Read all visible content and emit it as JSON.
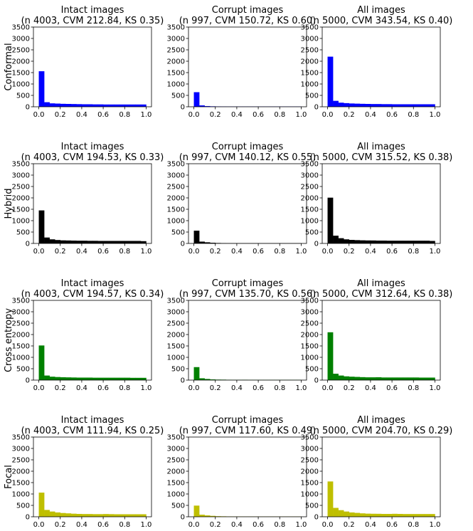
{
  "colors": {
    "Conformal": "#0000ff",
    "Hybrid": "#000000",
    "Cross entropy": "#008000",
    "Focal": "#bfbf00"
  },
  "chart_data": [
    {
      "type": "bar",
      "row": "Conformal",
      "ylabel": "Conformal",
      "title_line1": "Intact images",
      "title_line2": "(n 4003, CVM 212.84, KS 0.35)",
      "xlim": [
        -0.05,
        1.05
      ],
      "ylim": [
        0,
        3500
      ],
      "xticks": [
        "0.0",
        "0.2",
        "0.4",
        "0.6",
        "0.8",
        "1.0"
      ],
      "yticks": [
        "0",
        "500",
        "1000",
        "1500",
        "2000",
        "2500",
        "3000",
        "3500"
      ],
      "bin_width": 0.05,
      "bin_starts": [
        0,
        0.05,
        0.1,
        0.15,
        0.2,
        0.25,
        0.3,
        0.35,
        0.4,
        0.45,
        0.5,
        0.55,
        0.6,
        0.65,
        0.7,
        0.75,
        0.8,
        0.85,
        0.9,
        0.95
      ],
      "values": [
        1560,
        200,
        150,
        140,
        130,
        125,
        120,
        115,
        110,
        110,
        105,
        105,
        100,
        100,
        100,
        100,
        100,
        100,
        100,
        100
      ]
    },
    {
      "type": "bar",
      "row": "Conformal",
      "ylabel": "",
      "title_line1": "Corrupt images",
      "title_line2": "(n 997, CVM 150.72, KS 0.60)",
      "xlim": [
        -0.05,
        1.05
      ],
      "ylim": [
        0,
        3500
      ],
      "xticks": [
        "0.0",
        "0.2",
        "0.4",
        "0.6",
        "0.8",
        "1.0"
      ],
      "yticks": [
        "0",
        "500",
        "1000",
        "1500",
        "2000",
        "2500",
        "3000",
        "3500"
      ],
      "bin_width": 0.05,
      "bin_starts": [
        0,
        0.05,
        0.1,
        0.15,
        0.2,
        0.25,
        0.3,
        0.35,
        0.4,
        0.45,
        0.5,
        0.55,
        0.6,
        0.65,
        0.7,
        0.75,
        0.8,
        0.85,
        0.9,
        0.95
      ],
      "values": [
        640,
        60,
        30,
        20,
        15,
        12,
        10,
        10,
        10,
        10,
        10,
        10,
        10,
        10,
        10,
        10,
        10,
        10,
        10,
        10
      ]
    },
    {
      "type": "bar",
      "row": "Conformal",
      "ylabel": "",
      "title_line1": "All images",
      "title_line2": "(n 5000, CVM 343.54, KS 0.40)",
      "xlim": [
        -0.05,
        1.05
      ],
      "ylim": [
        0,
        3500
      ],
      "xticks": [
        "0.0",
        "0.2",
        "0.4",
        "0.6",
        "0.8",
        "1.0"
      ],
      "yticks": [
        "0",
        "500",
        "1000",
        "1500",
        "2000",
        "2500",
        "3000",
        "3500"
      ],
      "bin_width": 0.05,
      "bin_starts": [
        0,
        0.05,
        0.1,
        0.15,
        0.2,
        0.25,
        0.3,
        0.35,
        0.4,
        0.45,
        0.5,
        0.55,
        0.6,
        0.65,
        0.7,
        0.75,
        0.8,
        0.85,
        0.9,
        0.95
      ],
      "values": [
        2200,
        260,
        180,
        160,
        145,
        137,
        130,
        125,
        120,
        120,
        115,
        115,
        110,
        110,
        110,
        110,
        110,
        110,
        110,
        110
      ]
    },
    {
      "type": "bar",
      "row": "Hybrid",
      "ylabel": "Hybrid",
      "title_line1": "Intact images",
      "title_line2": "(n 4003, CVM 194.53, KS 0.33)",
      "xlim": [
        -0.05,
        1.05
      ],
      "ylim": [
        0,
        3500
      ],
      "xticks": [
        "0.0",
        "0.2",
        "0.4",
        "0.6",
        "0.8",
        "1.0"
      ],
      "yticks": [
        "0",
        "500",
        "1000",
        "1500",
        "2000",
        "2500",
        "3000",
        "3500"
      ],
      "bin_width": 0.05,
      "bin_starts": [
        0,
        0.05,
        0.1,
        0.15,
        0.2,
        0.25,
        0.3,
        0.35,
        0.4,
        0.45,
        0.5,
        0.55,
        0.6,
        0.65,
        0.7,
        0.75,
        0.8,
        0.85,
        0.9,
        0.95
      ],
      "values": [
        1450,
        260,
        180,
        150,
        135,
        130,
        125,
        120,
        120,
        115,
        115,
        110,
        110,
        110,
        110,
        110,
        110,
        110,
        110,
        100
      ]
    },
    {
      "type": "bar",
      "row": "Hybrid",
      "ylabel": "",
      "title_line1": "Corrupt images",
      "title_line2": "(n 997, CVM 140.12, KS 0.55)",
      "xlim": [
        -0.05,
        1.05
      ],
      "ylim": [
        0,
        3500
      ],
      "xticks": [
        "0.0",
        "0.2",
        "0.4",
        "0.6",
        "0.8",
        "1.0"
      ],
      "yticks": [
        "0",
        "500",
        "1000",
        "1500",
        "2000",
        "2500",
        "3000",
        "3500"
      ],
      "bin_width": 0.05,
      "bin_starts": [
        0,
        0.05,
        0.1,
        0.15,
        0.2,
        0.25,
        0.3,
        0.35,
        0.4,
        0.45,
        0.5,
        0.55,
        0.6,
        0.65,
        0.7,
        0.75,
        0.8,
        0.85,
        0.9,
        0.95
      ],
      "values": [
        560,
        80,
        50,
        30,
        20,
        15,
        12,
        12,
        10,
        10,
        10,
        10,
        10,
        10,
        10,
        10,
        10,
        10,
        10,
        10
      ]
    },
    {
      "type": "bar",
      "row": "Hybrid",
      "ylabel": "",
      "title_line1": "All images",
      "title_line2": "(n 5000, CVM 315.52, KS 0.38)",
      "xlim": [
        -0.05,
        1.05
      ],
      "ylim": [
        0,
        3500
      ],
      "xticks": [
        "0.0",
        "0.2",
        "0.4",
        "0.6",
        "0.8",
        "1.0"
      ],
      "yticks": [
        "0",
        "500",
        "1000",
        "1500",
        "2000",
        "2500",
        "3000",
        "3500"
      ],
      "bin_width": 0.05,
      "bin_starts": [
        0,
        0.05,
        0.1,
        0.15,
        0.2,
        0.25,
        0.3,
        0.35,
        0.4,
        0.45,
        0.5,
        0.55,
        0.6,
        0.65,
        0.7,
        0.75,
        0.8,
        0.85,
        0.9,
        0.95
      ],
      "values": [
        2010,
        340,
        230,
        180,
        155,
        145,
        137,
        132,
        130,
        125,
        125,
        120,
        120,
        120,
        120,
        120,
        120,
        120,
        120,
        110
      ]
    },
    {
      "type": "bar",
      "row": "Cross entropy",
      "ylabel": "Cross entropy",
      "title_line1": "Intact images",
      "title_line2": "(n 4003, CVM 194.57, KS 0.34)",
      "xlim": [
        -0.05,
        1.05
      ],
      "ylim": [
        0,
        3500
      ],
      "xticks": [
        "0.0",
        "0.2",
        "0.4",
        "0.6",
        "0.8",
        "1.0"
      ],
      "yticks": [
        "0",
        "500",
        "1000",
        "1500",
        "2000",
        "2500",
        "3000",
        "3500"
      ],
      "bin_width": 0.05,
      "bin_starts": [
        0,
        0.05,
        0.1,
        0.15,
        0.2,
        0.25,
        0.3,
        0.35,
        0.4,
        0.45,
        0.5,
        0.55,
        0.6,
        0.65,
        0.7,
        0.75,
        0.8,
        0.85,
        0.9,
        0.95
      ],
      "values": [
        1520,
        200,
        150,
        135,
        125,
        120,
        115,
        110,
        110,
        110,
        105,
        105,
        105,
        105,
        105,
        105,
        105,
        100,
        100,
        100
      ]
    },
    {
      "type": "bar",
      "row": "Cross entropy",
      "ylabel": "",
      "title_line1": "Corrupt images",
      "title_line2": "(n 997, CVM 135.70, KS 0.56)",
      "xlim": [
        -0.05,
        1.05
      ],
      "ylim": [
        0,
        3500
      ],
      "xticks": [
        "0.0",
        "0.2",
        "0.4",
        "0.6",
        "0.8",
        "1.0"
      ],
      "yticks": [
        "0",
        "500",
        "1000",
        "1500",
        "2000",
        "2500",
        "3000",
        "3500"
      ],
      "bin_width": 0.05,
      "bin_starts": [
        0,
        0.05,
        0.1,
        0.15,
        0.2,
        0.25,
        0.3,
        0.35,
        0.4,
        0.45,
        0.5,
        0.55,
        0.6,
        0.65,
        0.7,
        0.75,
        0.8,
        0.85,
        0.9,
        0.95
      ],
      "values": [
        570,
        80,
        50,
        30,
        22,
        20,
        15,
        12,
        12,
        15,
        10,
        10,
        10,
        10,
        10,
        10,
        10,
        10,
        10,
        10
      ]
    },
    {
      "type": "bar",
      "row": "Cross entropy",
      "ylabel": "",
      "title_line1": "All images",
      "title_line2": "(n 5000, CVM 312.64, KS 0.38)",
      "xlim": [
        -0.05,
        1.05
      ],
      "ylim": [
        0,
        3500
      ],
      "xticks": [
        "0.0",
        "0.2",
        "0.4",
        "0.6",
        "0.8",
        "1.0"
      ],
      "yticks": [
        "0",
        "500",
        "1000",
        "1500",
        "2000",
        "2500",
        "3000",
        "3500"
      ],
      "bin_width": 0.05,
      "bin_starts": [
        0,
        0.05,
        0.1,
        0.15,
        0.2,
        0.25,
        0.3,
        0.35,
        0.4,
        0.45,
        0.5,
        0.55,
        0.6,
        0.65,
        0.7,
        0.75,
        0.8,
        0.85,
        0.9,
        0.95
      ],
      "values": [
        2100,
        280,
        200,
        165,
        150,
        140,
        130,
        122,
        122,
        125,
        115,
        115,
        115,
        115,
        115,
        115,
        115,
        110,
        110,
        110
      ]
    },
    {
      "type": "bar",
      "row": "Focal",
      "ylabel": "Focal",
      "title_line1": "Intact images",
      "title_line2": "(n 4003, CVM 111.94, KS 0.25)",
      "xlim": [
        -0.05,
        1.05
      ],
      "ylim": [
        0,
        3500
      ],
      "xticks": [
        "0.0",
        "0.2",
        "0.4",
        "0.6",
        "0.8",
        "1.0"
      ],
      "yticks": [
        "0",
        "500",
        "1000",
        "1500",
        "2000",
        "2500",
        "3000",
        "3500"
      ],
      "bin_width": 0.05,
      "bin_starts": [
        0,
        0.05,
        0.1,
        0.15,
        0.2,
        0.25,
        0.3,
        0.35,
        0.4,
        0.45,
        0.5,
        0.55,
        0.6,
        0.65,
        0.7,
        0.75,
        0.8,
        0.85,
        0.9,
        0.95
      ],
      "values": [
        1060,
        300,
        230,
        190,
        165,
        150,
        135,
        125,
        120,
        120,
        115,
        115,
        120,
        115,
        110,
        110,
        110,
        110,
        110,
        110
      ]
    },
    {
      "type": "bar",
      "row": "Focal",
      "ylabel": "",
      "title_line1": "Corrupt images",
      "title_line2": "(n 997, CVM 117.60, KS 0.49)",
      "xlim": [
        -0.05,
        1.05
      ],
      "ylim": [
        0,
        3500
      ],
      "xticks": [
        "0.0",
        "0.2",
        "0.4",
        "0.6",
        "0.8",
        "1.0"
      ],
      "yticks": [
        "0",
        "500",
        "1000",
        "1500",
        "2000",
        "2500",
        "3000",
        "3500"
      ],
      "bin_width": 0.05,
      "bin_starts": [
        0,
        0.05,
        0.1,
        0.15,
        0.2,
        0.25,
        0.3,
        0.35,
        0.4,
        0.45,
        0.5,
        0.55,
        0.6,
        0.65,
        0.7,
        0.75,
        0.8,
        0.85,
        0.9,
        0.95
      ],
      "values": [
        490,
        90,
        60,
        40,
        25,
        20,
        15,
        12,
        12,
        10,
        10,
        10,
        10,
        10,
        10,
        10,
        10,
        10,
        10,
        10
      ]
    },
    {
      "type": "bar",
      "row": "Focal",
      "ylabel": "",
      "title_line1": "All images",
      "title_line2": "(n 5000, CVM 204.70, KS 0.29)",
      "xlim": [
        -0.05,
        1.05
      ],
      "ylim": [
        0,
        3500
      ],
      "xticks": [
        "0.0",
        "0.2",
        "0.4",
        "0.6",
        "0.8",
        "1.0"
      ],
      "yticks": [
        "0",
        "500",
        "1000",
        "1500",
        "2000",
        "2500",
        "3000",
        "3500"
      ],
      "bin_width": 0.05,
      "bin_starts": [
        0,
        0.05,
        0.1,
        0.15,
        0.2,
        0.25,
        0.3,
        0.35,
        0.4,
        0.45,
        0.5,
        0.55,
        0.6,
        0.65,
        0.7,
        0.75,
        0.8,
        0.85,
        0.9,
        0.95
      ],
      "values": [
        1550,
        390,
        290,
        230,
        190,
        170,
        150,
        137,
        132,
        130,
        125,
        125,
        130,
        125,
        120,
        120,
        120,
        120,
        120,
        120
      ]
    }
  ]
}
